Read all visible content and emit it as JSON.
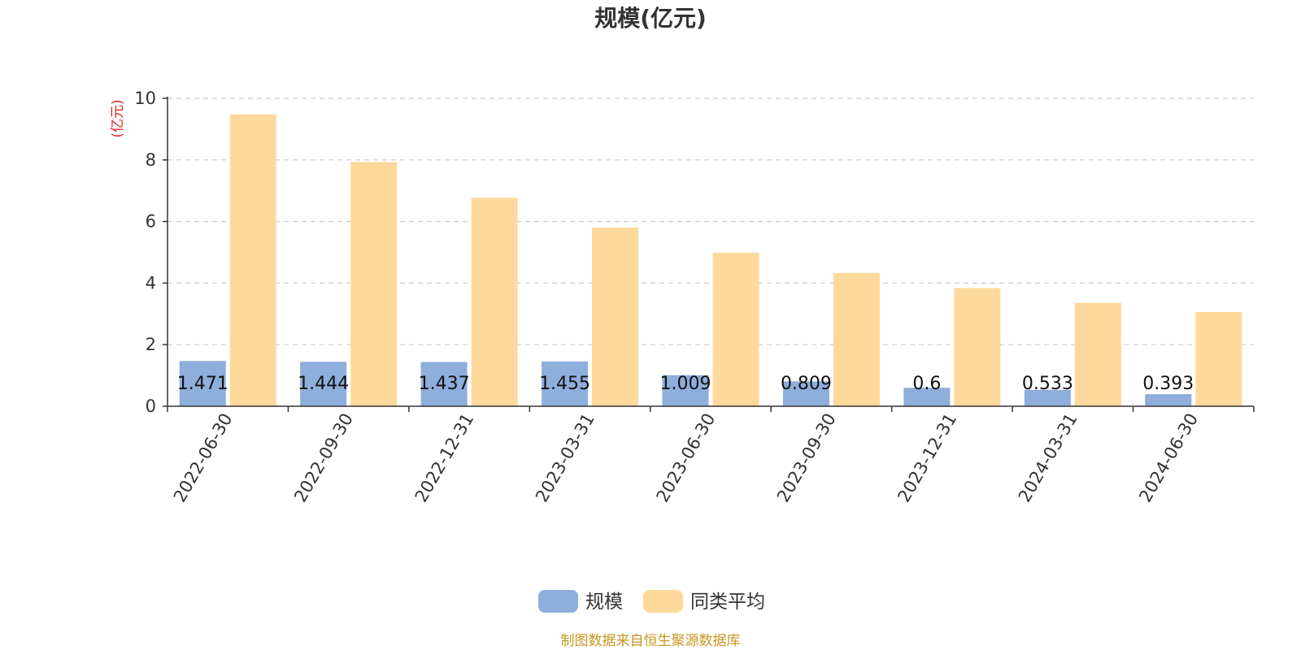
{
  "chart_data": {
    "type": "bar",
    "title": "规模(亿元)",
    "ylabel": "(亿元)",
    "xlabel": "",
    "ylim": [
      0,
      10
    ],
    "yticks": [
      0,
      2,
      4,
      6,
      8,
      10
    ],
    "grid": true,
    "legend_position": "bottom-center",
    "categories": [
      "2022-06-30",
      "2022-09-30",
      "2022-12-31",
      "2023-03-31",
      "2023-06-30",
      "2023-09-30",
      "2023-12-31",
      "2024-03-31",
      "2024-06-30"
    ],
    "series": [
      {
        "name": "规模",
        "color": "#8eaedb",
        "show_labels": true,
        "values": [
          1.471,
          1.444,
          1.437,
          1.455,
          1.009,
          0.809,
          0.6,
          0.533,
          0.393
        ]
      },
      {
        "name": "同类平均",
        "color": "#fed99b",
        "show_labels": false,
        "values": [
          9.48,
          7.93,
          6.77,
          5.8,
          4.99,
          4.33,
          3.84,
          3.36,
          3.06
        ]
      }
    ],
    "source_note": "制图数据来自恒生聚源数据库",
    "colors": {
      "title": "#333333",
      "ylabel": "#e02020",
      "axis": "#333333",
      "grid": "#cccccc",
      "source": "#c8951e"
    }
  }
}
